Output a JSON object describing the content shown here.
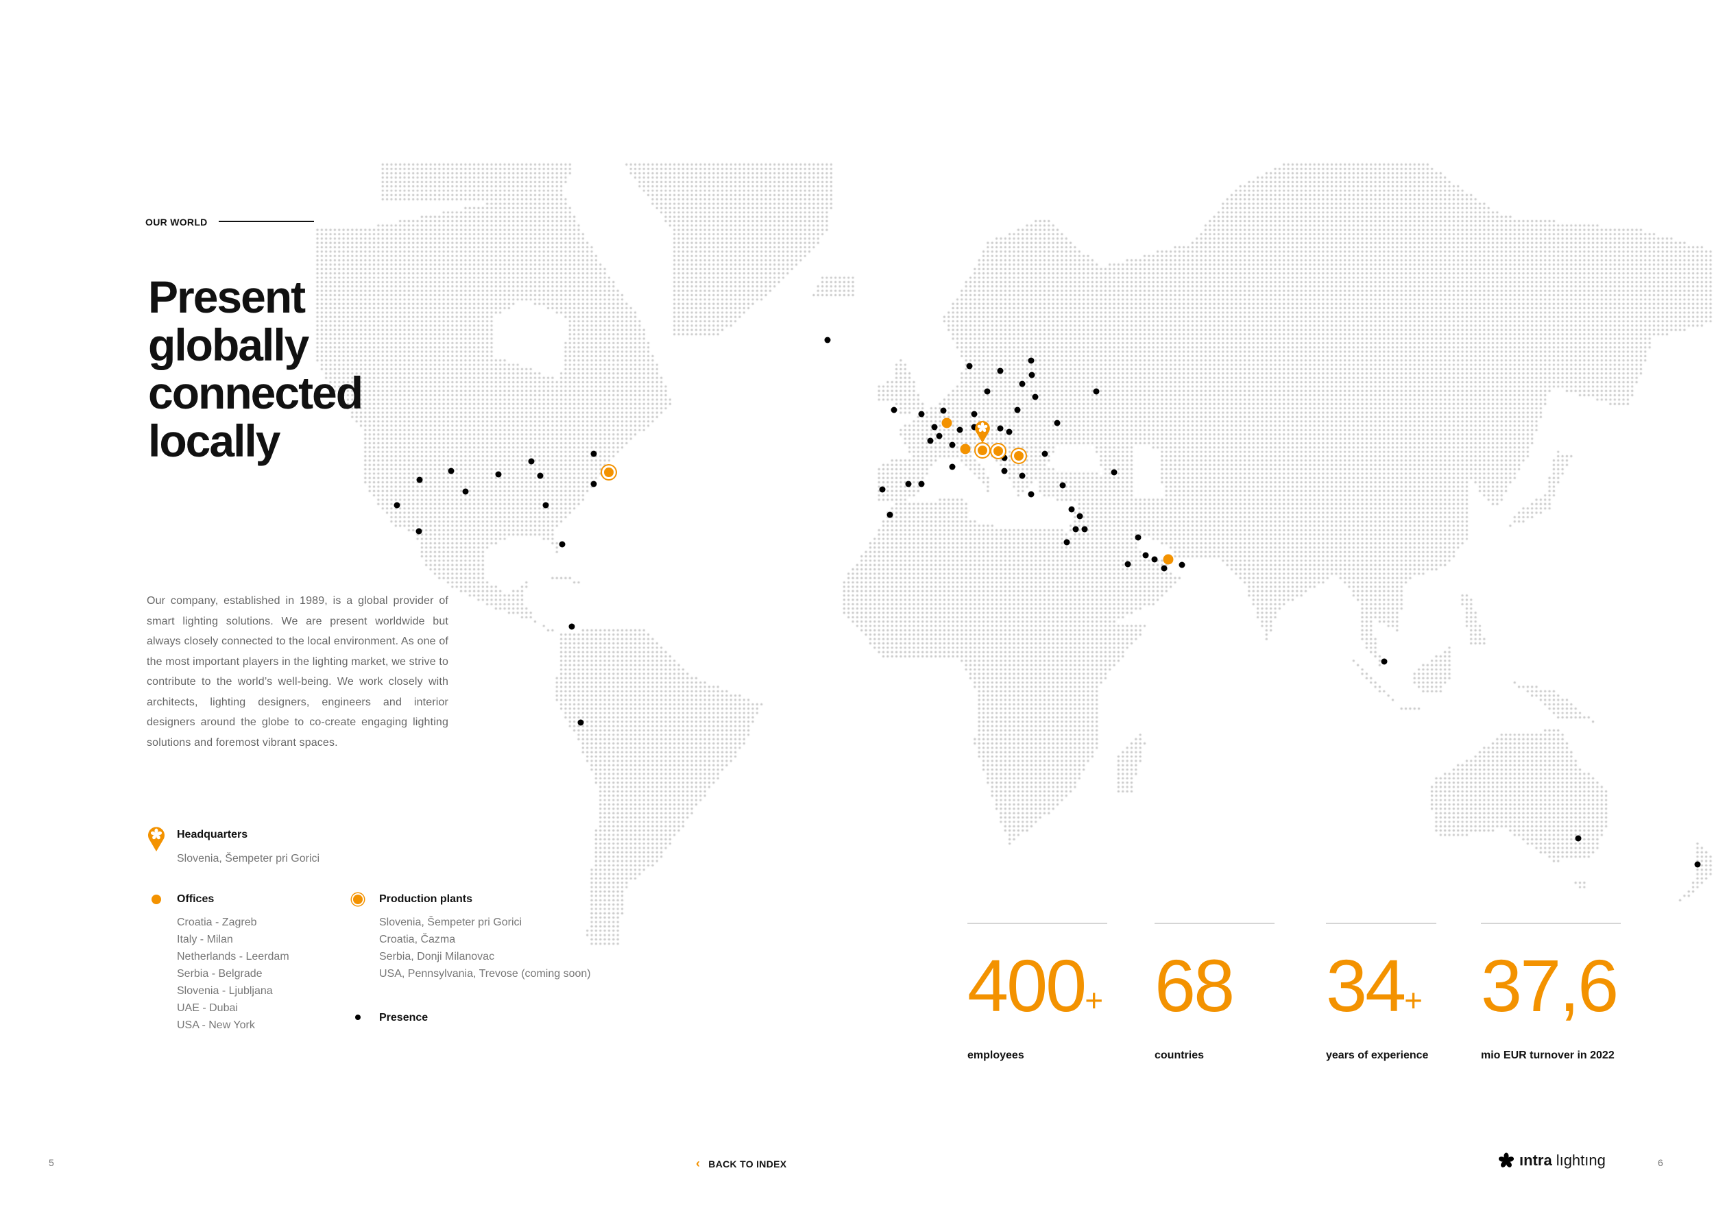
{
  "header": {
    "eyebrow": "OUR WORLD"
  },
  "title_lines": [
    "Present",
    "globally",
    "connected",
    "locally"
  ],
  "intro": "Our company, established in 1989, is a global provider of smart lighting solutions. We are present worldwide but always closely connected to the local environment. As one of the most important players in the lighting market, we strive to contribute to the world’s well-being. We work closely with architects, lighting designers, engineers and interior designers around the globe to co-create engaging lighting solutions and foremost vibrant spaces.",
  "legend": {
    "headquarters": {
      "title": "Headquarters",
      "items": [
        "Slovenia, Šempeter pri Gorici"
      ]
    },
    "offices": {
      "title": "Offices",
      "items": [
        "Croatia - Zagreb",
        "Italy - Milan",
        "Netherlands - Leerdam",
        "Serbia - Belgrade",
        "Slovenia - Ljubljana",
        "UAE - Dubai",
        "USA - New York"
      ]
    },
    "plants": {
      "title": "Production plants",
      "items": [
        "Slovenia, Šempeter pri Gorici",
        "Croatia, Čazma",
        "Serbia, Donji Milanovac",
        "USA, Pennsylvania, Trevose (coming soon)"
      ]
    },
    "presence": {
      "title": "Presence"
    }
  },
  "stats": [
    {
      "value": "400",
      "suffix": "+",
      "label": "employees"
    },
    {
      "value": "68",
      "suffix": "",
      "label": "countries"
    },
    {
      "value": "34",
      "suffix": "+",
      "label": "years of experience"
    },
    {
      "value": "37,6",
      "suffix": "",
      "label": "mio EUR turnover in 2022"
    }
  ],
  "footer": {
    "page_left": "5",
    "back_label": "BACK TO INDEX",
    "logo_text_bold": "ıntra",
    "logo_text": "lıghtıng",
    "page_right": "6"
  },
  "colors": {
    "accent": "#f39200",
    "map_dot": "#c9c9c9",
    "presence": "#000000"
  },
  "icons": {
    "headquarters": "map-pin-asterisk-icon",
    "office": "filled-dot-icon",
    "plant": "ringed-dot-icon",
    "presence": "small-black-dot-icon",
    "back": "chevron-left-icon",
    "logo": "flower-asterisk-icon"
  }
}
